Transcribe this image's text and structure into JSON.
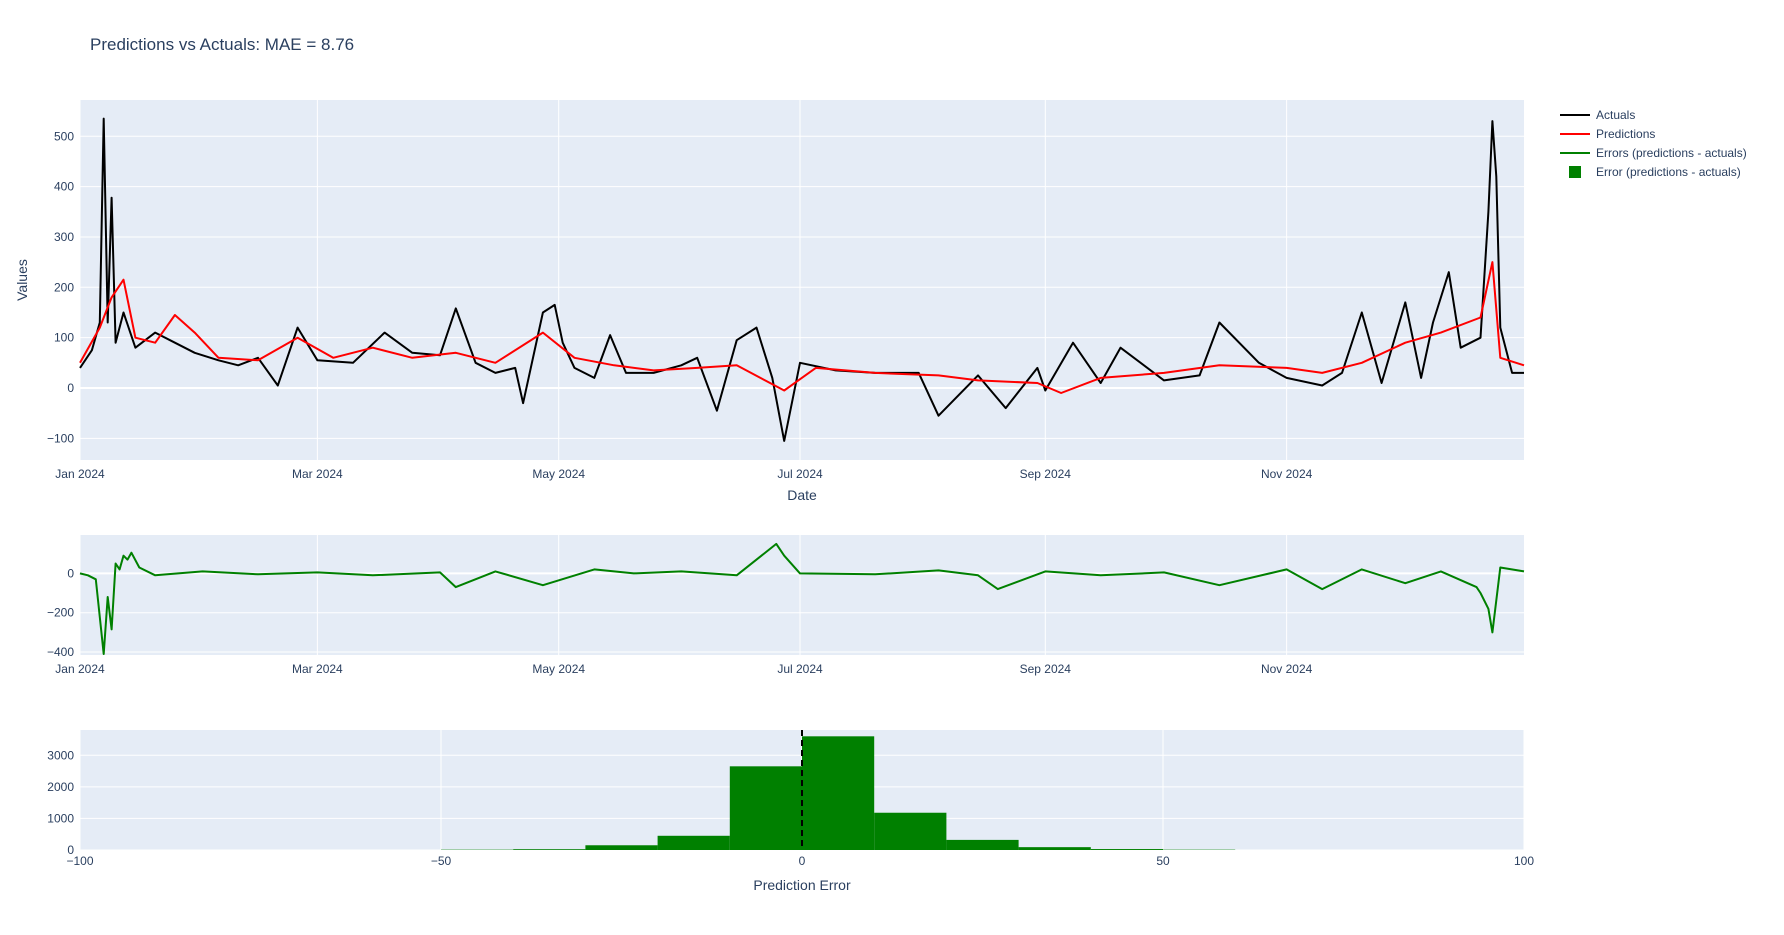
{
  "chart_data": [
    {
      "type": "line",
      "title": "Predictions vs Actuals: MAE = 8.76",
      "xlabel": "Date",
      "ylabel": "Values",
      "x_range": [
        "2024-01-01",
        "2024-12-31"
      ],
      "x_ticks": [
        "Jan 2024",
        "Mar 2024",
        "May 2024",
        "Jul 2024",
        "Sep 2024",
        "Nov 2024"
      ],
      "ylim": [
        -143,
        572
      ],
      "y_ticks": [
        "−100",
        "0",
        "100",
        "200",
        "300",
        "400",
        "500"
      ],
      "grid": true,
      "legend_position": "top-right",
      "series": [
        {
          "name": "Actuals",
          "color": "#000000",
          "points": [
            [
              "2024-01-01",
              40
            ],
            [
              "2024-01-04",
              75
            ],
            [
              "2024-01-06",
              130
            ],
            [
              "2024-01-07",
              535
            ],
            [
              "2024-01-08",
              130
            ],
            [
              "2024-01-09",
              378
            ],
            [
              "2024-01-10",
              90
            ],
            [
              "2024-01-12",
              150
            ],
            [
              "2024-01-15",
              80
            ],
            [
              "2024-01-20",
              110
            ],
            [
              "2024-01-25",
              90
            ],
            [
              "2024-01-30",
              70
            ],
            [
              "2024-02-05",
              55
            ],
            [
              "2024-02-10",
              45
            ],
            [
              "2024-02-15",
              60
            ],
            [
              "2024-02-20",
              5
            ],
            [
              "2024-02-25",
              120
            ],
            [
              "2024-03-01",
              55
            ],
            [
              "2024-03-10",
              50
            ],
            [
              "2024-03-18",
              110
            ],
            [
              "2024-03-25",
              70
            ],
            [
              "2024-04-01",
              65
            ],
            [
              "2024-04-05",
              158
            ],
            [
              "2024-04-10",
              50
            ],
            [
              "2024-04-15",
              30
            ],
            [
              "2024-04-20",
              40
            ],
            [
              "2024-04-22",
              -30
            ],
            [
              "2024-04-27",
              150
            ],
            [
              "2024-04-30",
              165
            ],
            [
              "2024-05-02",
              90
            ],
            [
              "2024-05-05",
              40
            ],
            [
              "2024-05-10",
              20
            ],
            [
              "2024-05-14",
              105
            ],
            [
              "2024-05-18",
              30
            ],
            [
              "2024-05-25",
              30
            ],
            [
              "2024-06-01",
              45
            ],
            [
              "2024-06-05",
              60
            ],
            [
              "2024-06-10",
              -45
            ],
            [
              "2024-06-15",
              95
            ],
            [
              "2024-06-20",
              120
            ],
            [
              "2024-06-24",
              20
            ],
            [
              "2024-06-27",
              -105
            ],
            [
              "2024-07-01",
              50
            ],
            [
              "2024-07-10",
              35
            ],
            [
              "2024-07-20",
              30
            ],
            [
              "2024-07-31",
              30
            ],
            [
              "2024-08-05",
              -55
            ],
            [
              "2024-08-15",
              25
            ],
            [
              "2024-08-22",
              -40
            ],
            [
              "2024-08-30",
              40
            ],
            [
              "2024-09-01",
              -5
            ],
            [
              "2024-09-08",
              90
            ],
            [
              "2024-09-15",
              10
            ],
            [
              "2024-09-20",
              80
            ],
            [
              "2024-10-01",
              15
            ],
            [
              "2024-10-10",
              25
            ],
            [
              "2024-10-15",
              130
            ],
            [
              "2024-10-25",
              50
            ],
            [
              "2024-11-01",
              20
            ],
            [
              "2024-11-10",
              5
            ],
            [
              "2024-11-15",
              30
            ],
            [
              "2024-11-20",
              150
            ],
            [
              "2024-11-25",
              10
            ],
            [
              "2024-12-01",
              170
            ],
            [
              "2024-12-05",
              20
            ],
            [
              "2024-12-08",
              130
            ],
            [
              "2024-12-12",
              230
            ],
            [
              "2024-12-15",
              80
            ],
            [
              "2024-12-20",
              100
            ],
            [
              "2024-12-22",
              350
            ],
            [
              "2024-12-23",
              530
            ],
            [
              "2024-12-24",
              420
            ],
            [
              "2024-12-25",
              120
            ],
            [
              "2024-12-28",
              30
            ],
            [
              "2024-12-31",
              30
            ]
          ]
        },
        {
          "name": "Predictions",
          "color": "#ff0000",
          "points": [
            [
              "2024-01-01",
              50
            ],
            [
              "2024-01-06",
              120
            ],
            [
              "2024-01-09",
              180
            ],
            [
              "2024-01-12",
              215
            ],
            [
              "2024-01-15",
              100
            ],
            [
              "2024-01-20",
              90
            ],
            [
              "2024-01-25",
              145
            ],
            [
              "2024-01-30",
              110
            ],
            [
              "2024-02-05",
              60
            ],
            [
              "2024-02-15",
              55
            ],
            [
              "2024-02-25",
              100
            ],
            [
              "2024-03-05",
              60
            ],
            [
              "2024-03-15",
              80
            ],
            [
              "2024-03-25",
              60
            ],
            [
              "2024-04-05",
              70
            ],
            [
              "2024-04-15",
              50
            ],
            [
              "2024-04-27",
              110
            ],
            [
              "2024-05-05",
              60
            ],
            [
              "2024-05-15",
              45
            ],
            [
              "2024-05-25",
              35
            ],
            [
              "2024-06-05",
              40
            ],
            [
              "2024-06-15",
              45
            ],
            [
              "2024-06-27",
              -5
            ],
            [
              "2024-07-05",
              40
            ],
            [
              "2024-07-20",
              30
            ],
            [
              "2024-08-05",
              25
            ],
            [
              "2024-08-15",
              15
            ],
            [
              "2024-08-30",
              10
            ],
            [
              "2024-09-05",
              -10
            ],
            [
              "2024-09-15",
              20
            ],
            [
              "2024-10-01",
              30
            ],
            [
              "2024-10-15",
              45
            ],
            [
              "2024-11-01",
              40
            ],
            [
              "2024-11-10",
              30
            ],
            [
              "2024-11-20",
              50
            ],
            [
              "2024-12-01",
              90
            ],
            [
              "2024-12-10",
              110
            ],
            [
              "2024-12-20",
              140
            ],
            [
              "2024-12-23",
              250
            ],
            [
              "2024-12-25",
              60
            ],
            [
              "2024-12-31",
              45
            ]
          ]
        }
      ]
    },
    {
      "type": "line",
      "x_range": [
        "2024-01-01",
        "2024-12-31"
      ],
      "x_ticks": [
        "Jan 2024",
        "Mar 2024",
        "May 2024",
        "Jul 2024",
        "Sep 2024",
        "Nov 2024"
      ],
      "ylim": [
        -415,
        195
      ],
      "y_ticks": [
        "−400",
        "−200",
        "0"
      ],
      "grid": true,
      "series": [
        {
          "name": "Errors (predictions - actuals)",
          "color": "#008000",
          "points": [
            [
              "2024-01-01",
              0
            ],
            [
              "2024-01-03",
              -10
            ],
            [
              "2024-01-05",
              -30
            ],
            [
              "2024-01-07",
              -410
            ],
            [
              "2024-01-08",
              -120
            ],
            [
              "2024-01-09",
              -285
            ],
            [
              "2024-01-10",
              50
            ],
            [
              "2024-01-11",
              20
            ],
            [
              "2024-01-12",
              90
            ],
            [
              "2024-01-13",
              70
            ],
            [
              "2024-01-14",
              105
            ],
            [
              "2024-01-16",
              30
            ],
            [
              "2024-01-20",
              -10
            ],
            [
              "2024-02-01",
              10
            ],
            [
              "2024-02-15",
              -5
            ],
            [
              "2024-03-01",
              5
            ],
            [
              "2024-03-15",
              -10
            ],
            [
              "2024-04-01",
              5
            ],
            [
              "2024-04-05",
              -70
            ],
            [
              "2024-04-15",
              10
            ],
            [
              "2024-04-27",
              -60
            ],
            [
              "2024-05-10",
              20
            ],
            [
              "2024-05-20",
              0
            ],
            [
              "2024-06-01",
              10
            ],
            [
              "2024-06-15",
              -10
            ],
            [
              "2024-06-25",
              150
            ],
            [
              "2024-06-27",
              90
            ],
            [
              "2024-07-01",
              0
            ],
            [
              "2024-07-20",
              -5
            ],
            [
              "2024-08-05",
              15
            ],
            [
              "2024-08-15",
              -10
            ],
            [
              "2024-08-20",
              -80
            ],
            [
              "2024-09-01",
              10
            ],
            [
              "2024-09-15",
              -10
            ],
            [
              "2024-10-01",
              5
            ],
            [
              "2024-10-15",
              -60
            ],
            [
              "2024-11-01",
              20
            ],
            [
              "2024-11-10",
              -80
            ],
            [
              "2024-11-20",
              20
            ],
            [
              "2024-12-01",
              -50
            ],
            [
              "2024-12-10",
              10
            ],
            [
              "2024-12-19",
              -70
            ],
            [
              "2024-12-20",
              -100
            ],
            [
              "2024-12-22",
              -180
            ],
            [
              "2024-12-23",
              -300
            ],
            [
              "2024-12-25",
              30
            ],
            [
              "2024-12-31",
              10
            ]
          ]
        }
      ]
    },
    {
      "type": "bar",
      "xlabel": "Prediction Error",
      "xlim": [
        -100,
        100
      ],
      "x_ticks": [
        -100,
        -50,
        0,
        50,
        100
      ],
      "x_tick_labels": [
        "−100",
        "−50",
        "0",
        "50",
        "100"
      ],
      "ylim": [
        0,
        3800
      ],
      "y_ticks": [
        "0",
        "1000",
        "2000",
        "3000"
      ],
      "grid": true,
      "reference_line_x": 0,
      "series": [
        {
          "name": "Error (predictions - actuals)",
          "color": "#008000",
          "bins": [
            {
              "start": -50,
              "end": -40,
              "value": 10
            },
            {
              "start": -40,
              "end": -30,
              "value": 25
            },
            {
              "start": -30,
              "end": -20,
              "value": 150
            },
            {
              "start": -20,
              "end": -10,
              "value": 450
            },
            {
              "start": -10,
              "end": 0,
              "value": 2650
            },
            {
              "start": 0,
              "end": 10,
              "value": 3600
            },
            {
              "start": 10,
              "end": 20,
              "value": 1180
            },
            {
              "start": 20,
              "end": 30,
              "value": 320
            },
            {
              "start": 30,
              "end": 40,
              "value": 90
            },
            {
              "start": 40,
              "end": 50,
              "value": 30
            },
            {
              "start": 50,
              "end": 60,
              "value": 10
            }
          ]
        }
      ]
    }
  ],
  "legend": [
    {
      "label": "Actuals",
      "kind": "line",
      "color": "#000000"
    },
    {
      "label": "Predictions",
      "kind": "line",
      "color": "#ff0000"
    },
    {
      "label": "Errors (predictions - actuals)",
      "kind": "line",
      "color": "#008000"
    },
    {
      "label": "Error (predictions - actuals)",
      "kind": "square",
      "color": "#008000"
    }
  ],
  "colors": {
    "plot_bg": "#e5ecf6",
    "grid": "#ffffff",
    "text": "#2a3f5f"
  }
}
